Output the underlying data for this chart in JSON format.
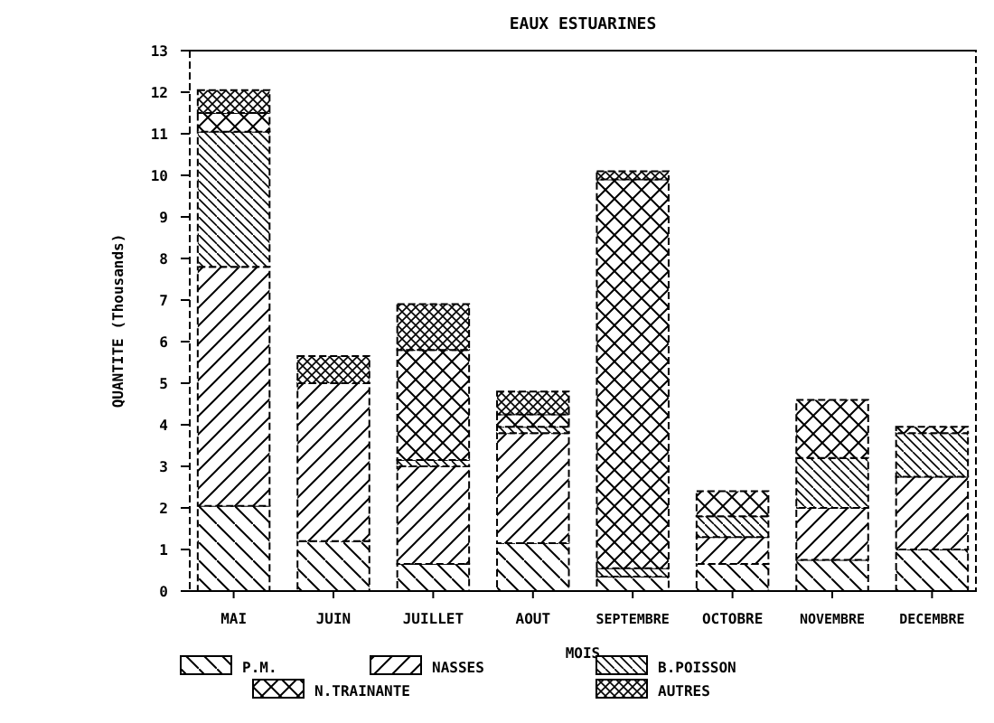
{
  "chart_data": {
    "type": "bar",
    "stacked": true,
    "title": "EAUX ESTUARINES",
    "xlabel": "MOIS",
    "ylabel": "QUANTITE (Thousands)",
    "categories": [
      "MAI",
      "JUIN",
      "JUILLET",
      "AOUT",
      "SEPTEMBRE",
      "OCTOBRE",
      "NOVEMBRE",
      "DECEMBRE"
    ],
    "series": [
      {
        "name": "P.M.",
        "color": "#000000",
        "values": [
          2.05,
          1.2,
          0.65,
          1.15,
          0.35,
          0.65,
          0.75,
          1.0
        ]
      },
      {
        "name": "NASSES",
        "color": "#000000",
        "values": [
          5.75,
          3.8,
          2.35,
          2.65,
          0,
          0.65,
          1.25,
          1.75
        ]
      },
      {
        "name": "B.POISSON",
        "color": "#000000",
        "values": [
          3.25,
          0,
          0.15,
          0.15,
          0.2,
          0.5,
          1.2,
          1.05
        ]
      },
      {
        "name": "N.TRAINANTE",
        "color": "#000000",
        "values": [
          0.45,
          0,
          2.65,
          0.3,
          9.35,
          0.6,
          1.4,
          0.15
        ]
      },
      {
        "name": "AUTRES",
        "color": "#000000",
        "values": [
          0.55,
          0.65,
          1.1,
          0.55,
          0.2,
          0,
          0,
          0
        ]
      }
    ],
    "ylim": [
      0,
      13
    ],
    "yticks": [
      0,
      1,
      2,
      3,
      4,
      5,
      6,
      7,
      8,
      9,
      10,
      11,
      12,
      13
    ],
    "grid": false,
    "legend": "bottom"
  }
}
